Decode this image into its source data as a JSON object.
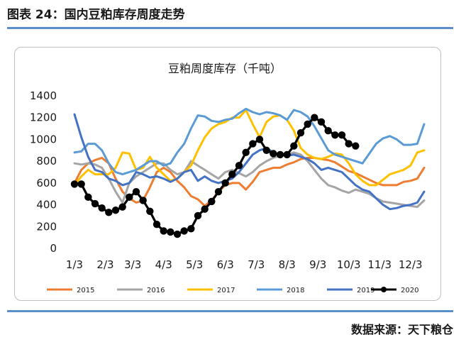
{
  "header": {
    "figure_title": "图表 24：国内豆粕库存周度走势"
  },
  "footer": {
    "source": "数据来源：天下粮仓"
  },
  "chart_data": {
    "type": "line",
    "title": "豆粕周度库存（千吨）",
    "xlabel": "",
    "ylabel": "",
    "ylim": [
      0,
      1400
    ],
    "yticks": [
      0,
      200,
      400,
      600,
      800,
      1000,
      1200,
      1400
    ],
    "xlim": [
      1,
      52
    ],
    "x_ticks": [
      {
        "label": "1/3",
        "week": 1
      },
      {
        "label": "2/3",
        "week": 5.5
      },
      {
        "label": "3/3",
        "week": 9.5
      },
      {
        "label": "4/3",
        "week": 14
      },
      {
        "label": "5/3",
        "week": 18.5
      },
      {
        "label": "6/3",
        "week": 23
      },
      {
        "label": "7/3",
        "week": 27.5
      },
      {
        "label": "8/3",
        "week": 32
      },
      {
        "label": "9/3",
        "week": 36.5
      },
      {
        "label": "10/3",
        "week": 41
      },
      {
        "label": "11/3",
        "week": 45.5
      },
      {
        "label": "12/3",
        "week": 50
      }
    ],
    "grid": false,
    "legend": "bottom",
    "series": [
      {
        "name": "2015",
        "color": "#ed7d31",
        "marker": false,
        "values": [
          600,
          720,
          780,
          810,
          830,
          780,
          640,
          520,
          460,
          420,
          440,
          560,
          700,
          740,
          700,
          620,
          560,
          480,
          450,
          390,
          440,
          520,
          580,
          600,
          600,
          540,
          610,
          700,
          720,
          740,
          740,
          770,
          790,
          820,
          830,
          830,
          820,
          810,
          790,
          750,
          710,
          690,
          660,
          630,
          600,
          580,
          580,
          580,
          610,
          620,
          640,
          740
        ]
      },
      {
        "name": "2016",
        "color": "#a5a5a5",
        "marker": false,
        "values": [
          780,
          770,
          780,
          770,
          740,
          640,
          520,
          420,
          600,
          660,
          700,
          740,
          780,
          780,
          720,
          680,
          700,
          800,
          760,
          720,
          680,
          640,
          700,
          720,
          690,
          660,
          700,
          760,
          800,
          830,
          850,
          860,
          880,
          860,
          800,
          720,
          640,
          580,
          560,
          530,
          510,
          540,
          520,
          500,
          460,
          430,
          420,
          410,
          400,
          390,
          380,
          440
        ]
      },
      {
        "name": "2017",
        "color": "#ffc000",
        "marker": false,
        "values": [
          580,
          660,
          720,
          680,
          680,
          680,
          740,
          880,
          870,
          720,
          740,
          840,
          740,
          680,
          620,
          640,
          700,
          760,
          900,
          1020,
          1100,
          1140,
          1160,
          1200,
          1200,
          1270,
          1140,
          1020,
          1160,
          1210,
          1220,
          1180,
          1080,
          920,
          860,
          830,
          820,
          840,
          870,
          860,
          780,
          680,
          620,
          580,
          580,
          630,
          680,
          700,
          720,
          760,
          880,
          900
        ]
      },
      {
        "name": "2018",
        "color": "#5b9bd5",
        "marker": false,
        "values": [
          880,
          890,
          960,
          960,
          900,
          780,
          700,
          680,
          700,
          720,
          760,
          800,
          800,
          760,
          780,
          880,
          960,
          1100,
          1220,
          1210,
          1170,
          1160,
          1180,
          1190,
          1240,
          1280,
          1250,
          1230,
          1250,
          1240,
          1220,
          1180,
          1270,
          1250,
          1210,
          1120,
          1010,
          900,
          860,
          840,
          820,
          800,
          780,
          870,
          960,
          1010,
          1030,
          1000,
          950,
          950,
          960,
          1140
        ]
      },
      {
        "name": "2019",
        "color": "#4472c4",
        "marker": false,
        "values": [
          1230,
          1020,
          840,
          720,
          700,
          640,
          620,
          580,
          600,
          700,
          680,
          650,
          660,
          640,
          610,
          640,
          700,
          720,
          620,
          660,
          620,
          600,
          620,
          640,
          700,
          780,
          860,
          900,
          920,
          880,
          860,
          850,
          860,
          840,
          820,
          780,
          720,
          740,
          720,
          700,
          640,
          580,
          540,
          520,
          460,
          400,
          360,
          370,
          390,
          400,
          420,
          520
        ]
      },
      {
        "name": "2020",
        "color": "#000000",
        "marker": true,
        "values": [
          590,
          590,
          470,
          410,
          370,
          330,
          350,
          380,
          470,
          520,
          440,
          340,
          220,
          160,
          150,
          130,
          160,
          180,
          300,
          360,
          430,
          520,
          600,
          680,
          760,
          880,
          960,
          1000,
          900,
          870,
          860,
          860,
          940,
          1060,
          1140,
          1200,
          1160,
          1080,
          1040,
          1040,
          960,
          940
        ]
      }
    ]
  }
}
